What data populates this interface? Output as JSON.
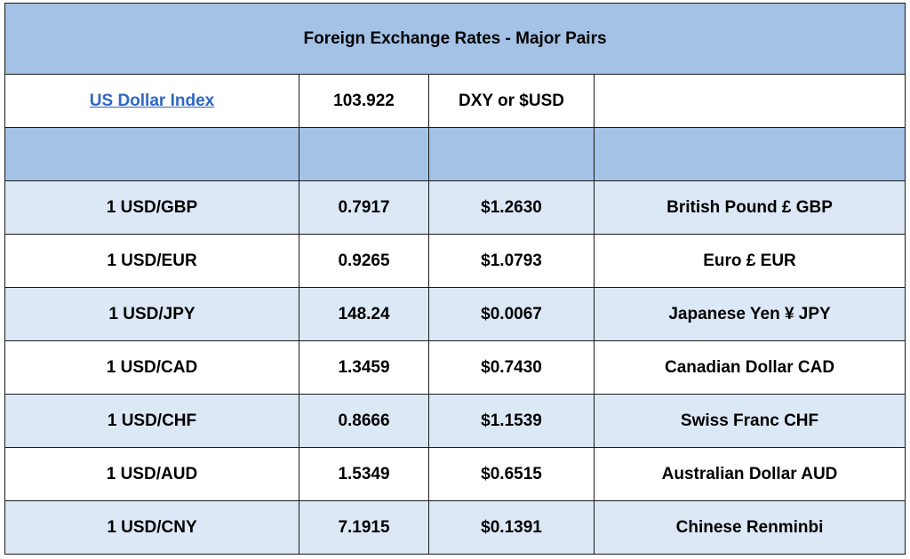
{
  "title": "Foreign Exchange Rates - Major Pairs",
  "index_row": {
    "label": "US Dollar Index",
    "value": "103.922",
    "symbol": "DXY or $USD",
    "note": ""
  },
  "colors": {
    "header_fill": "#a4c2e6",
    "shaded_row": "#dce8f5",
    "link": "#2f66c4"
  },
  "rows": [
    {
      "pair": "1 USD/GBP",
      "rate": "0.7917",
      "usd_value": "$1.2630",
      "currency": "British Pound £ GBP"
    },
    {
      "pair": "1 USD/EUR",
      "rate": "0.9265",
      "usd_value": "$1.0793",
      "currency": "Euro £ EUR"
    },
    {
      "pair": "1 USD/JPY",
      "rate": "148.24",
      "usd_value": "$0.0067",
      "currency": "Japanese Yen ¥ JPY"
    },
    {
      "pair": "1 USD/CAD",
      "rate": "1.3459",
      "usd_value": "$0.7430",
      "currency": "Canadian Dollar CAD"
    },
    {
      "pair": "1 USD/CHF",
      "rate": "0.8666",
      "usd_value": "$1.1539",
      "currency": "Swiss Franc CHF"
    },
    {
      "pair": "1 USD/AUD",
      "rate": "1.5349",
      "usd_value": "$0.6515",
      "currency": "Australian Dollar AUD"
    },
    {
      "pair": "1 USD/CNY",
      "rate": "7.1915",
      "usd_value": "$0.1391",
      "currency": "Chinese Renminbi"
    }
  ]
}
